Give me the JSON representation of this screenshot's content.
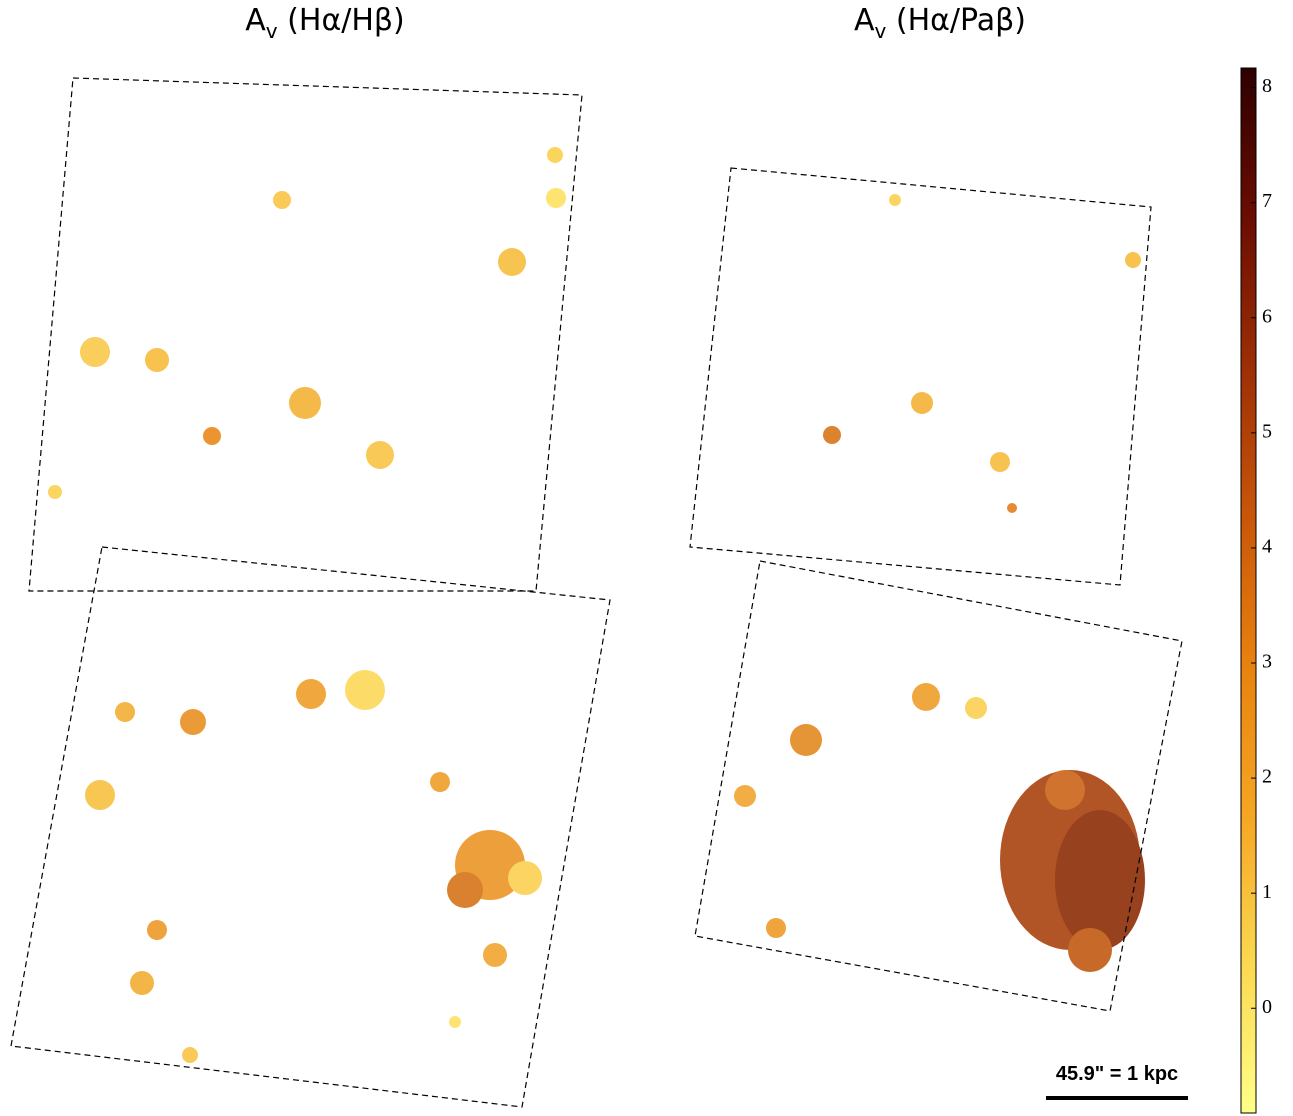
{
  "chart_data": {
    "type": "image",
    "titles": [
      {
        "main": "A",
        "sub": "v",
        "rest": " (Hα/Hβ)"
      },
      {
        "main": "A",
        "sub": "v",
        "rest": " (Hα/Paβ)"
      }
    ],
    "scale_bar": "45.9\" = 1 kpc",
    "colorbar": {
      "ylim": [
        -0.91,
        8.17
      ],
      "yticks": [
        0,
        1,
        2,
        3,
        4,
        5,
        6,
        7,
        8
      ],
      "colors": [
        "#ffff88",
        "#fbd850",
        "#f5a623",
        "#e8820e",
        "#c8560a",
        "#9c2f05",
        "#6a0d02",
        "#2e0000"
      ]
    }
  }
}
